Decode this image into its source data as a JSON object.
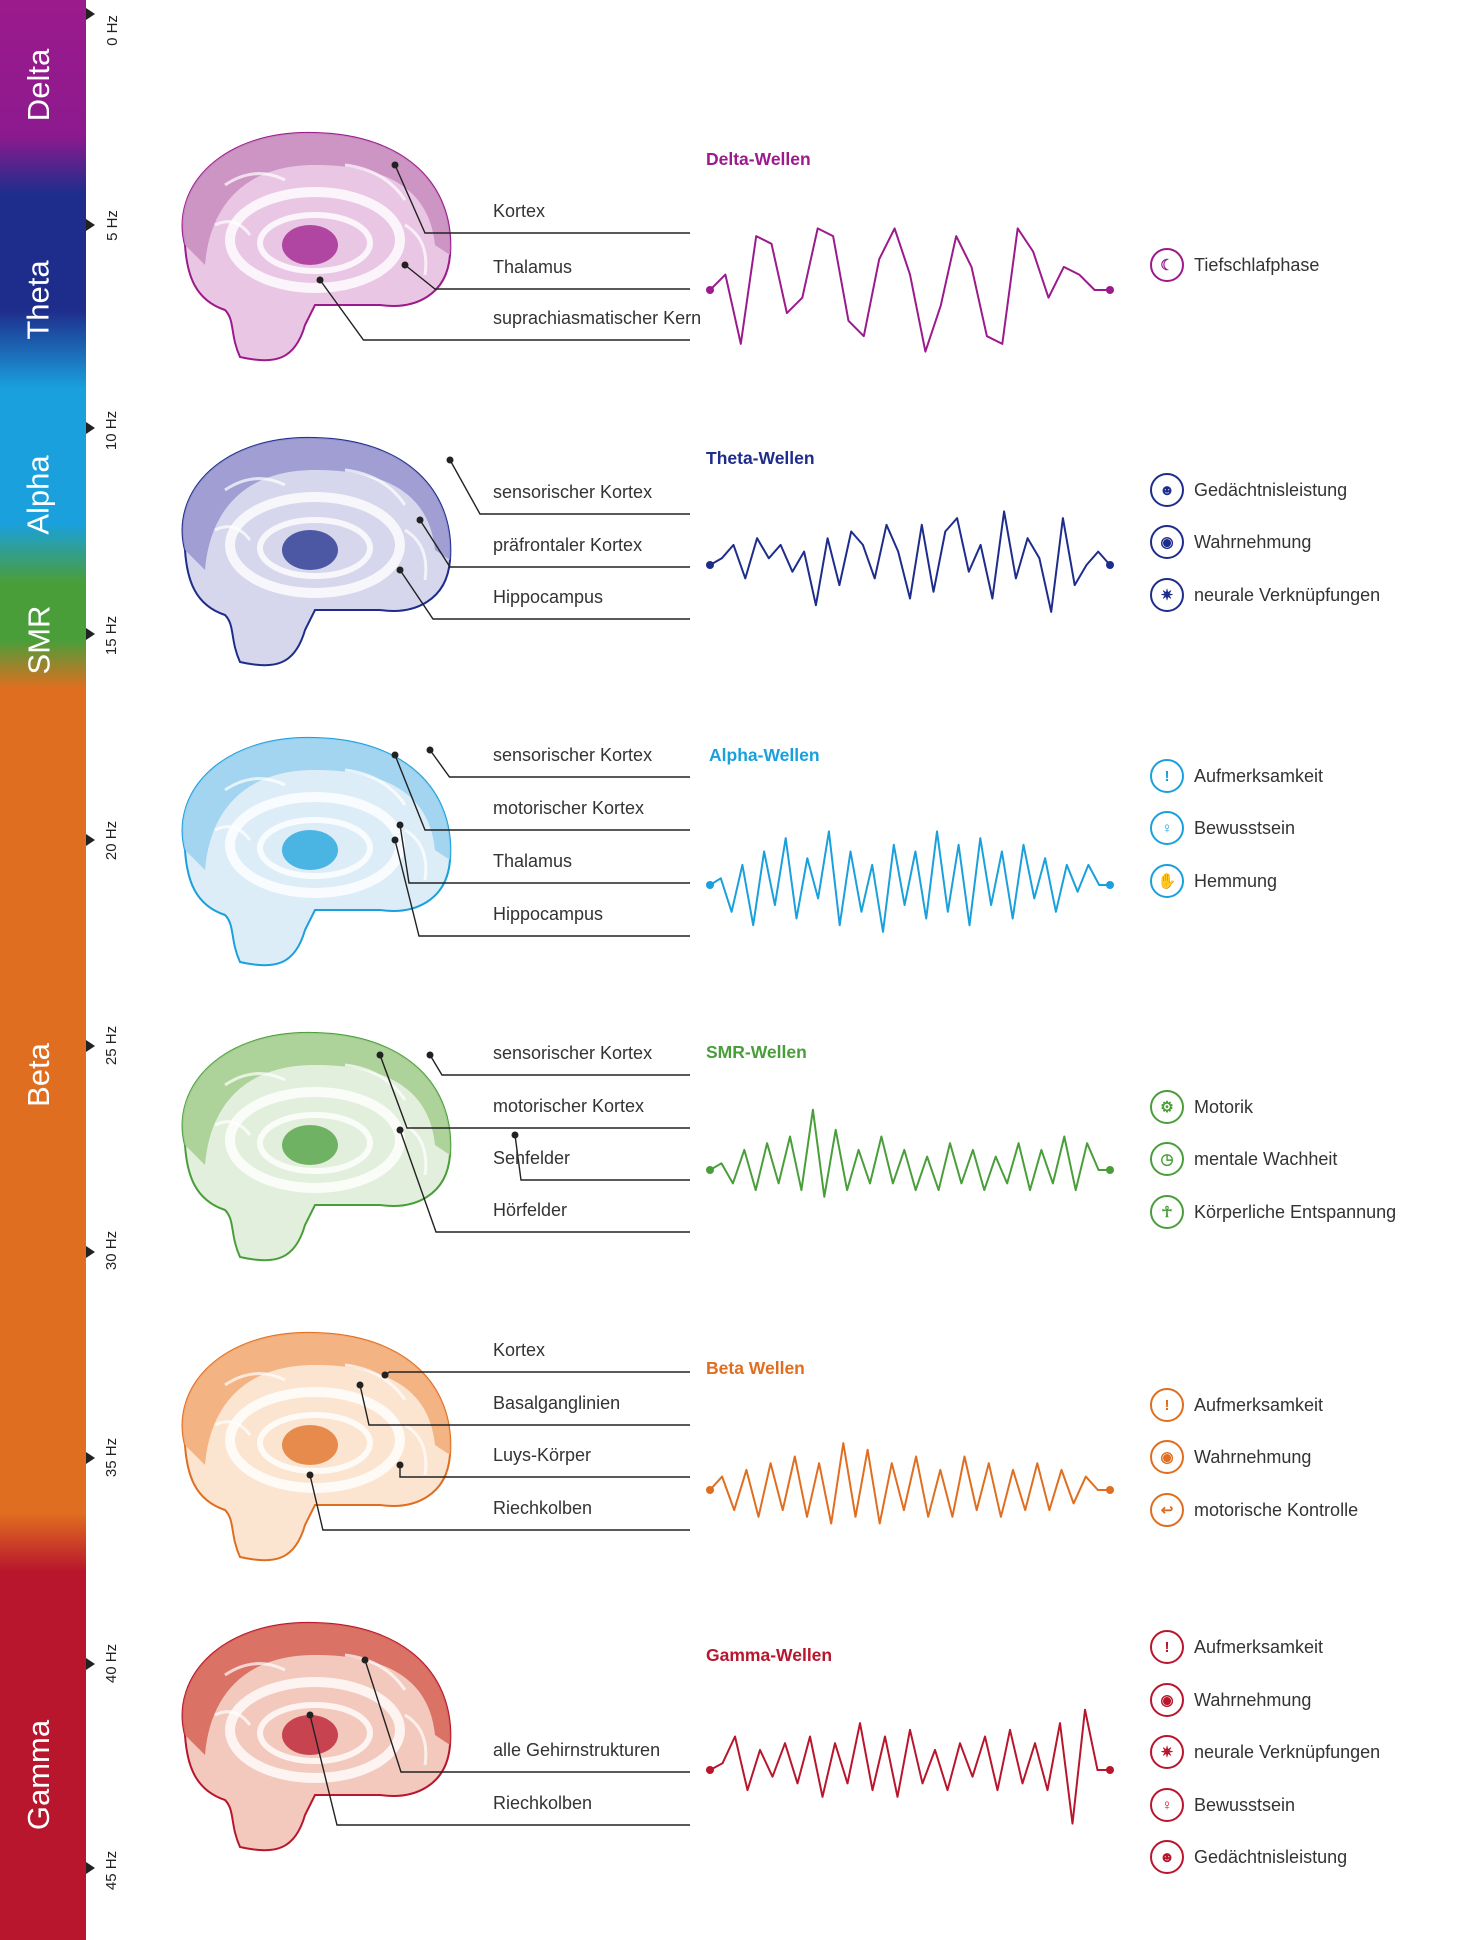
{
  "band": {
    "colors": {
      "delta": "#9c1a8c",
      "theta": "#1e2d8c",
      "alpha": "#1aa0dc",
      "smr": "#4a9e3a",
      "beta": "#e06e20",
      "gamma": "#b8162c"
    },
    "labels": [
      "Delta",
      "Theta",
      "Alpha",
      "SMR",
      "Beta",
      "Gamma"
    ],
    "hz_ticks": [
      "0 Hz",
      "5 Hz",
      "10 Hz",
      "15 Hz",
      "20 Hz",
      "25 Hz",
      "30 Hz",
      "35 Hz",
      "40 Hz",
      "45 Hz"
    ]
  },
  "sections": [
    {
      "id": "delta",
      "color": "#9c1a8c",
      "light": "#e9c7e4",
      "mid": "#c98fc0",
      "wave_title": "Delta-Wellen",
      "labels": [
        "Kortex",
        "Thalamus",
        "suprachiasmatischer Kern"
      ],
      "functions": [
        {
          "icon": "moon-icon",
          "glyph": "☾",
          "text": "Tiefschlafphase"
        }
      ],
      "wave_amplitudes": [
        0,
        0.2,
        -0.7,
        0.7,
        0.6,
        -0.3,
        -0.1,
        0.8,
        0.7,
        -0.4,
        -0.6,
        0.4,
        0.8,
        0.2,
        -0.8,
        -0.2,
        0.7,
        0.3,
        -0.6,
        -0.7,
        0.8,
        0.5,
        -0.1,
        0.3,
        0.2,
        0,
        0
      ]
    },
    {
      "id": "theta",
      "color": "#1e2d8c",
      "light": "#d6d6ec",
      "mid": "#9a98cf",
      "wave_title": "Theta-Wellen",
      "labels": [
        "sensorischer Kortex",
        "präfrontaler Kortex",
        "Hippocampus"
      ],
      "functions": [
        {
          "icon": "head-icon",
          "glyph": "☻",
          "text": "Gedächtnisleistung"
        },
        {
          "icon": "eye-icon",
          "glyph": "◉",
          "text": "Wahrnehmung"
        },
        {
          "icon": "neuron-icon",
          "glyph": "✷",
          "text": "neurale Verknüpfungen"
        }
      ],
      "wave_amplitudes": [
        0,
        0.1,
        0.3,
        -0.2,
        0.4,
        0.1,
        0.3,
        -0.1,
        0.2,
        -0.6,
        0.4,
        -0.3,
        0.5,
        0.3,
        -0.2,
        0.6,
        0.2,
        -0.5,
        0.6,
        -0.4,
        0.5,
        0.7,
        -0.1,
        0.3,
        -0.5,
        0.8,
        -0.2,
        0.4,
        0.1,
        -0.7,
        0.7,
        -0.3,
        0,
        0.2,
        0
      ]
    },
    {
      "id": "alpha",
      "color": "#1aa0dc",
      "light": "#dcedf8",
      "mid": "#9cd0ee",
      "wave_title": "Alpha-Wellen",
      "labels": [
        "sensorischer Kortex",
        "motorischer Kortex",
        "Thalamus",
        "Hippocampus"
      ],
      "functions": [
        {
          "icon": "exclamation-icon",
          "glyph": "!",
          "text": "Aufmerksamkeit"
        },
        {
          "icon": "lightbulb-icon",
          "glyph": "♀",
          "text": "Bewusstsein"
        },
        {
          "icon": "hand-icon",
          "glyph": "✋",
          "text": "Hemmung"
        }
      ],
      "wave_amplitudes": [
        0,
        0.1,
        -0.4,
        0.3,
        -0.6,
        0.5,
        -0.3,
        0.7,
        -0.5,
        0.4,
        -0.2,
        0.8,
        -0.6,
        0.5,
        -0.4,
        0.3,
        -0.7,
        0.6,
        -0.3,
        0.5,
        -0.5,
        0.8,
        -0.4,
        0.6,
        -0.6,
        0.7,
        -0.3,
        0.5,
        -0.5,
        0.6,
        -0.2,
        0.4,
        -0.4,
        0.3,
        -0.1,
        0.3,
        0,
        0
      ]
    },
    {
      "id": "smr",
      "color": "#4a9e3a",
      "light": "#e3efdd",
      "mid": "#a6cf94",
      "wave_title": "SMR-Wellen",
      "labels": [
        "sensorischer Kortex",
        "motorischer Kortex",
        "Sehfelder",
        "Hörfelder"
      ],
      "functions": [
        {
          "icon": "gear-icon",
          "glyph": "⚙",
          "text": "Motorik"
        },
        {
          "icon": "clock-icon",
          "glyph": "◷",
          "text": "mentale Wachheit"
        },
        {
          "icon": "meditation-icon",
          "glyph": "☥",
          "text": "Körperliche Entspannung"
        }
      ],
      "wave_amplitudes": [
        0,
        0.1,
        -0.2,
        0.3,
        -0.3,
        0.4,
        -0.2,
        0.5,
        -0.3,
        0.9,
        -0.4,
        0.6,
        -0.3,
        0.3,
        -0.2,
        0.5,
        -0.2,
        0.3,
        -0.3,
        0.2,
        -0.3,
        0.4,
        -0.2,
        0.3,
        -0.3,
        0.2,
        -0.2,
        0.4,
        -0.3,
        0.3,
        -0.2,
        0.5,
        -0.3,
        0.4,
        0,
        0
      ]
    },
    {
      "id": "beta",
      "color": "#e06e20",
      "light": "#fbe4d0",
      "mid": "#f2ad7a",
      "wave_title": "Beta Wellen",
      "labels": [
        "Kortex",
        "Basalganglinien",
        "Luys-Körper",
        "Riechkolben"
      ],
      "functions": [
        {
          "icon": "exclamation-icon",
          "glyph": "!",
          "text": "Aufmerksamkeit"
        },
        {
          "icon": "eye-icon",
          "glyph": "◉",
          "text": "Wahrnehmung"
        },
        {
          "icon": "arm-icon",
          "glyph": "↩",
          "text": "motorische Kontrolle"
        }
      ],
      "wave_amplitudes": [
        0,
        0.2,
        -0.3,
        0.3,
        -0.4,
        0.4,
        -0.3,
        0.5,
        -0.4,
        0.4,
        -0.5,
        0.7,
        -0.4,
        0.6,
        -0.5,
        0.4,
        -0.3,
        0.5,
        -0.4,
        0.3,
        -0.4,
        0.5,
        -0.3,
        0.4,
        -0.4,
        0.3,
        -0.3,
        0.4,
        -0.3,
        0.3,
        -0.2,
        0.2,
        0,
        0
      ]
    },
    {
      "id": "gamma",
      "color": "#b8162c",
      "light": "#f3c9bd",
      "mid": "#d7685b",
      "wave_title": "Gamma-Wellen",
      "labels": [
        "alle Gehirnstrukturen",
        "Riechkolben"
      ],
      "functions": [
        {
          "icon": "exclamation-icon",
          "glyph": "!",
          "text": "Aufmerksamkeit"
        },
        {
          "icon": "eye-icon",
          "glyph": "◉",
          "text": "Wahrnehmung"
        },
        {
          "icon": "neuron-icon",
          "glyph": "✷",
          "text": "neurale Verknüpfungen"
        },
        {
          "icon": "lightbulb-icon",
          "glyph": "♀",
          "text": "Bewusstsein"
        },
        {
          "icon": "head-icon",
          "glyph": "☻",
          "text": "Gedächtnisleistung"
        }
      ],
      "wave_amplitudes": [
        0,
        0.1,
        0.5,
        -0.3,
        0.3,
        -0.1,
        0.4,
        -0.2,
        0.5,
        -0.4,
        0.4,
        -0.2,
        0.7,
        -0.3,
        0.5,
        -0.4,
        0.6,
        -0.2,
        0.3,
        -0.3,
        0.4,
        -0.1,
        0.5,
        -0.3,
        0.6,
        -0.2,
        0.4,
        -0.3,
        0.7,
        -0.8,
        0.9,
        0,
        0
      ]
    }
  ]
}
